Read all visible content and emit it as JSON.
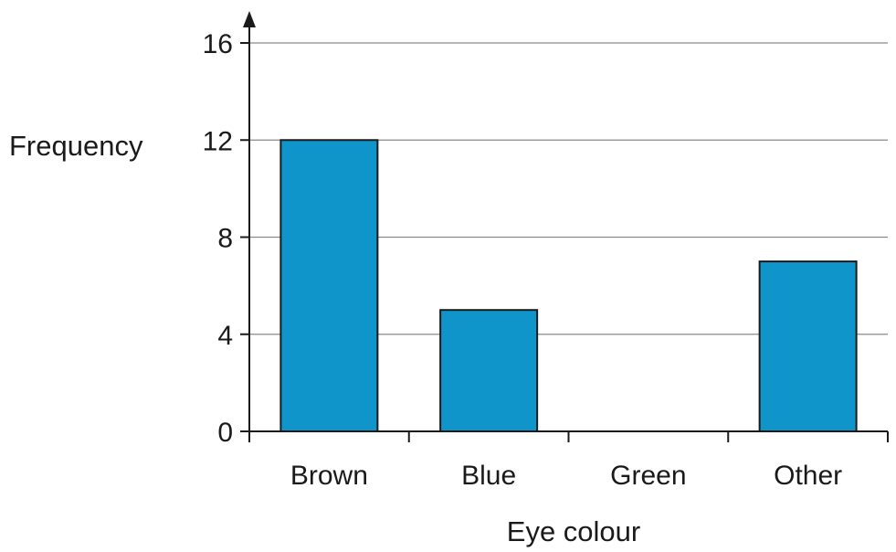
{
  "chart_data": {
    "type": "bar",
    "categories": [
      "Brown",
      "Blue",
      "Green",
      "Other"
    ],
    "values": [
      12,
      5,
      0,
      7
    ],
    "title": "",
    "xlabel": "Eye colour",
    "ylabel": "Frequency",
    "ylim": [
      0,
      16
    ],
    "yticks": [
      0,
      4,
      8,
      12,
      16
    ],
    "grid": true,
    "bar_color": "#0f95c9"
  }
}
